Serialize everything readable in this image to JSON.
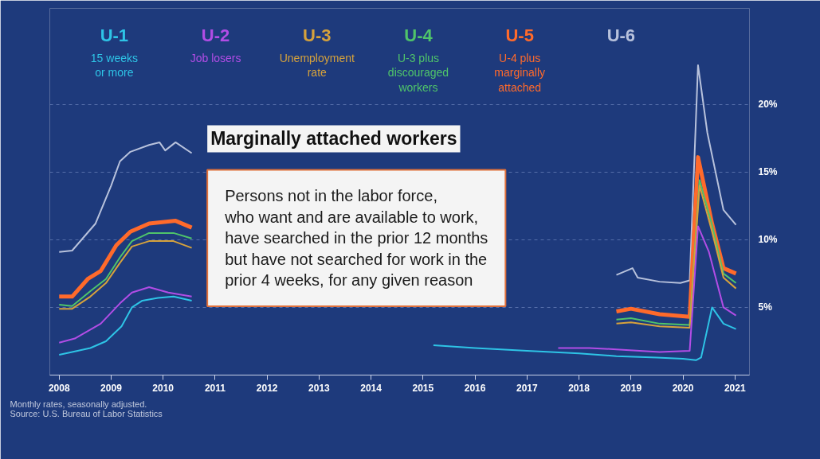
{
  "chart_data": {
    "type": "line",
    "xlim": [
      2007.82,
      2021.28
    ],
    "ylim": [
      0,
      27.1
    ],
    "xticks": [
      2008,
      2009,
      2010,
      2011,
      2012,
      2013,
      2014,
      2015,
      2016,
      2017,
      2018,
      2019,
      2020,
      2021
    ],
    "yticks": [
      {
        "value": 5,
        "label": "5%"
      },
      {
        "value": 10,
        "label": "10%"
      },
      {
        "value": 15,
        "label": "15%"
      },
      {
        "value": 20,
        "label": "20%"
      }
    ],
    "grid": "y",
    "legend": "top",
    "line_style": "solid",
    "series": [
      {
        "name": "U-1",
        "color": "#2ec4e6",
        "x": [
          2008.0,
          2008.25,
          2008.6,
          2008.9,
          2009.2,
          2009.4,
          2009.6,
          2009.9,
          2010.2,
          2010.55,
          2013.0,
          2015.2,
          2016.0,
          2017.0,
          2018.0,
          2018.72,
          2019.5,
          2020.0,
          2020.25,
          2020.35,
          2020.56,
          2020.78,
          2021.02
        ],
        "values": [
          1.5,
          1.7,
          2.0,
          2.5,
          3.6,
          5.0,
          5.5,
          5.7,
          5.8,
          5.5,
          null,
          2.2,
          2.0,
          1.8,
          1.6,
          1.4,
          1.3,
          1.2,
          1.1,
          1.3,
          5.0,
          3.8,
          3.4
        ]
      },
      {
        "name": "U-2",
        "color": "#b24de6",
        "x": [
          2008.0,
          2008.3,
          2008.8,
          2009.17,
          2009.4,
          2009.73,
          2010.1,
          2010.55,
          2014.0,
          2017.6,
          2018.2,
          2018.72,
          2019.55,
          2020.13,
          2020.29,
          2020.5,
          2020.78,
          2021.02
        ],
        "values": [
          2.4,
          2.7,
          3.8,
          5.3,
          6.1,
          6.5,
          6.1,
          5.8,
          null,
          2.0,
          2.0,
          1.9,
          1.7,
          1.8,
          11.0,
          9.1,
          5.0,
          4.4
        ]
      },
      {
        "name": "U-3",
        "color": "#d6a23c",
        "x": [
          2008.0,
          2008.25,
          2008.6,
          2008.9,
          2009.17,
          2009.4,
          2009.73,
          2010.2,
          2010.55,
          2014.0,
          2018.72,
          2019.0,
          2019.55,
          2020.13,
          2020.32,
          2020.56,
          2020.78,
          2021.02
        ],
        "values": [
          4.9,
          4.9,
          5.8,
          6.8,
          8.3,
          9.5,
          9.9,
          9.9,
          9.4,
          null,
          3.8,
          3.9,
          3.6,
          3.5,
          14.0,
          10.6,
          7.2,
          6.4
        ]
      },
      {
        "name": "U-4",
        "color": "#4fc46a",
        "x": [
          2008.0,
          2008.25,
          2008.6,
          2008.9,
          2009.17,
          2009.4,
          2009.73,
          2010.2,
          2010.55,
          2014.0,
          2018.72,
          2019.0,
          2019.55,
          2020.13,
          2020.32,
          2020.56,
          2020.78,
          2021.02
        ],
        "values": [
          5.2,
          5.1,
          6.2,
          7.1,
          8.7,
          9.9,
          10.5,
          10.5,
          10.1,
          null,
          4.1,
          4.2,
          3.8,
          3.7,
          14.4,
          11.1,
          7.5,
          6.8
        ]
      },
      {
        "name": "U-5",
        "color": "#ff6a2b",
        "x": [
          2008.0,
          2008.25,
          2008.55,
          2008.8,
          2009.1,
          2009.37,
          2009.73,
          2010.24,
          2010.55,
          2014.0,
          2018.72,
          2019.0,
          2019.55,
          2020.13,
          2020.29,
          2020.56,
          2020.78,
          2021.02
        ],
        "values": [
          5.8,
          5.8,
          7.1,
          7.7,
          9.6,
          10.6,
          11.2,
          11.4,
          10.9,
          null,
          4.7,
          4.9,
          4.5,
          4.3,
          16.1,
          11.2,
          7.9,
          7.5
        ]
      },
      {
        "name": "U-6",
        "color": "#b8c2dc",
        "x": [
          2008.0,
          2008.25,
          2008.7,
          2009.0,
          2009.17,
          2009.37,
          2009.73,
          2009.93,
          2010.04,
          2010.24,
          2010.55,
          2014.0,
          2018.72,
          2019.03,
          2019.13,
          2019.55,
          2019.95,
          2020.13,
          2020.29,
          2020.47,
          2020.78,
          2021.02
        ],
        "values": [
          9.1,
          9.2,
          11.2,
          14.0,
          15.8,
          16.5,
          17.0,
          17.2,
          16.6,
          17.2,
          16.4,
          null,
          7.4,
          7.9,
          7.2,
          6.9,
          6.8,
          7.0,
          22.9,
          17.9,
          12.2,
          11.1
        ]
      }
    ],
    "annotations": [
      "15 weeks\nor more",
      "Job losers",
      "Unemployment\nrate",
      "U-3 plus\ndiscouraged\nworkers",
      "U-4 plus\nmarginally\nattached",
      "Marginally attached workers",
      "Persons not in the labor force,\nwho want and are available to work,\nhave searched in the prior 12 months\nbut have not searched for work in the\nprior 4 weeks, for any given reason",
      "Monthly rates, seasonally adjusted.\nSource: U.S. Bureau of Labor Statistics"
    ]
  }
}
